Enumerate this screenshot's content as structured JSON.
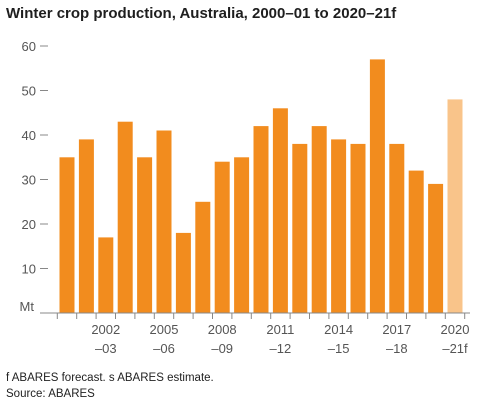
{
  "chart_data": {
    "type": "bar",
    "title": "Winter crop production, Australia, 2000–01 to 2020–21f",
    "unit_label": "Mt",
    "ylim": [
      0,
      60
    ],
    "yticks": [
      10,
      20,
      30,
      40,
      50,
      60
    ],
    "grid": false,
    "categories": [
      "2000–01",
      "2001–02",
      "2002–03",
      "2003–04",
      "2004–05",
      "2005–06",
      "2006–07",
      "2007–08",
      "2008–09",
      "2009–10",
      "2010–11",
      "2011–12",
      "2012–13",
      "2013–14",
      "2014–15",
      "2015–16",
      "2016–17",
      "2017–18",
      "2018–19",
      "2019–20",
      "2020–21f"
    ],
    "values": [
      35,
      39,
      17,
      43,
      35,
      41,
      18,
      25,
      34,
      35,
      42,
      46,
      38,
      42,
      39,
      38,
      57,
      38,
      32,
      29,
      48
    ],
    "forecast_flags": [
      false,
      false,
      false,
      false,
      false,
      false,
      false,
      false,
      false,
      false,
      false,
      false,
      false,
      false,
      false,
      false,
      false,
      false,
      false,
      false,
      true
    ],
    "xtick_labels": [
      {
        "index": 2,
        "top": "2002",
        "bottom": "–03"
      },
      {
        "index": 5,
        "top": "2005",
        "bottom": "–06"
      },
      {
        "index": 8,
        "top": "2008",
        "bottom": "–09"
      },
      {
        "index": 11,
        "top": "2011",
        "bottom": "–12"
      },
      {
        "index": 14,
        "top": "2014",
        "bottom": "–15"
      },
      {
        "index": 17,
        "top": "2017",
        "bottom": "–18"
      },
      {
        "index": 20,
        "top": "2020",
        "bottom": "–21f"
      }
    ],
    "colors": {
      "bar": "#F28C1E",
      "forecast_bar": "#F9C48A",
      "axis": "#888888"
    }
  },
  "notes": {
    "footnote": "f ABARES forecast. s ABARES estimate.",
    "source": "Source: ABARES"
  }
}
